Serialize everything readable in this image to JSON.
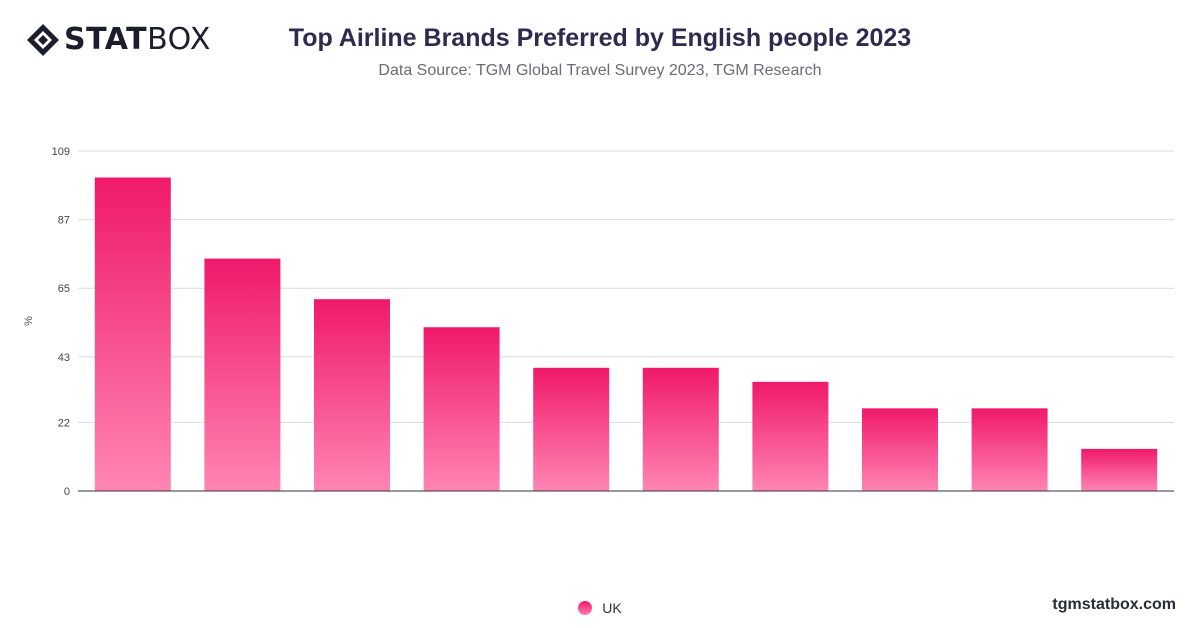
{
  "header": {
    "logo_bold": "STAT",
    "logo_light": "BOX",
    "title": "Top Airline Brands Preferred by English people 2023",
    "subtitle": "Data Source: TGM Global Travel Survey 2023, TGM Research"
  },
  "footer": {
    "site": "tgmstatbox.com"
  },
  "colors": {
    "bar_top": "#f0196b",
    "bar_bottom": "#ff85b4",
    "title": "#2d2b4e"
  },
  "chart_data": {
    "type": "bar",
    "title": "Top Airline Brands Preferred by English people 2023",
    "xlabel": "",
    "ylabel": "%",
    "ylim": [
      0,
      109
    ],
    "yticks": [
      0,
      22,
      43,
      65,
      87,
      109
    ],
    "grid": true,
    "legend_position": "bottom",
    "categories": [
      "",
      "",
      "",
      "",
      "",
      "",
      "",
      "",
      "",
      ""
    ],
    "series": [
      {
        "name": "UK",
        "values": [
          100.5,
          74.5,
          61.5,
          52.5,
          39.5,
          39.5,
          35,
          26.5,
          26.5,
          13.5
        ]
      }
    ]
  }
}
